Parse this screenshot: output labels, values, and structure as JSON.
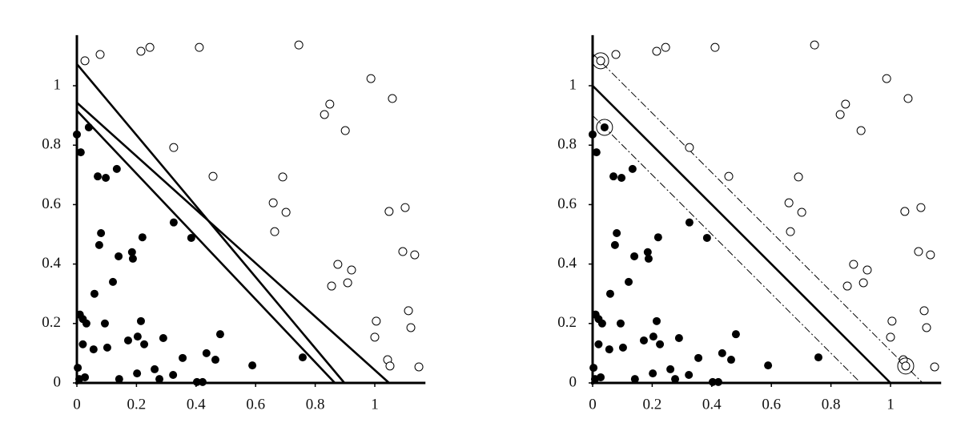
{
  "chart_data": [
    {
      "type": "scatter",
      "xlim": [
        0,
        1.17
      ],
      "ylim": [
        0,
        1.17
      ],
      "xticks": [
        0,
        0.2,
        0.4,
        0.6,
        0.8,
        1
      ],
      "yticks": [
        0,
        0.2,
        0.4,
        0.6,
        0.8,
        1
      ],
      "series": [
        {
          "marker": "filled",
          "color": "#000000",
          "x": [
            0,
            0.013,
            0.04,
            0.07,
            0.097,
            0.134,
            0.081,
            0.075,
            0.185,
            0.188,
            0.22,
            0.14,
            0.325,
            0.384,
            0.121,
            0.059,
            0.01,
            0.02,
            0.032,
            0.094,
            0.02,
            0.056,
            0.102,
            0.172,
            0.204,
            0.215,
            0.226,
            0.29,
            0.355,
            0.435,
            0.465,
            0.481,
            0.589,
            0.758,
            0.003,
            0.008,
            0.027,
            0.142,
            0.202,
            0.261,
            0.277,
            0.323,
            0.403,
            0.422
          ],
          "values": [
            0.836,
            0.776,
            0.86,
            0.695,
            0.69,
            0.72,
            0.504,
            0.464,
            0.44,
            0.418,
            0.49,
            0.426,
            0.54,
            0.488,
            0.34,
            0.3,
            0.23,
            0.215,
            0.2,
            0.2,
            0.13,
            0.113,
            0.119,
            0.143,
            0.156,
            0.208,
            0.13,
            0.151,
            0.084,
            0.1,
            0.078,
            0.164,
            0.059,
            0.086,
            0.051,
            0.013,
            0.019,
            0.013,
            0.032,
            0.046,
            0.013,
            0.027,
            0.003,
            0.003
          ]
        },
        {
          "marker": "open",
          "color": "#000000",
          "x": [
            0.027,
            0.078,
            0.215,
            0.245,
            0.411,
            0.745,
            0.987,
            1.059,
            0.849,
            0.831,
            0.901,
            0.325,
            0.457,
            0.691,
            0.659,
            0.702,
            0.664,
            1.048,
            1.102,
            1.094,
            1.134,
            0.876,
            0.922,
            0.855,
            0.909,
            1.113,
            1.121,
            1.005,
            1.0,
            1.043,
            1.051,
            1.148
          ],
          "values": [
            1.084,
            1.105,
            1.116,
            1.129,
            1.129,
            1.137,
            1.024,
            0.957,
            0.938,
            0.903,
            0.849,
            0.792,
            0.695,
            0.693,
            0.606,
            0.574,
            0.509,
            0.577,
            0.59,
            0.442,
            0.431,
            0.399,
            0.38,
            0.326,
            0.337,
            0.243,
            0.186,
            0.208,
            0.154,
            0.078,
            0.057,
            0.054
          ]
        }
      ],
      "lines": [
        {
          "style": "solid",
          "x": [
            0,
            0.898
          ],
          "values": [
            1.073,
            0
          ]
        },
        {
          "style": "solid",
          "x": [
            0,
            1.048
          ],
          "values": [
            0.943,
            0
          ]
        },
        {
          "style": "solid",
          "x": [
            0,
            0.866
          ],
          "values": [
            0.916,
            0
          ]
        }
      ]
    },
    {
      "type": "scatter",
      "xlim": [
        0,
        1.17
      ],
      "ylim": [
        0,
        1.17
      ],
      "xticks": [
        0,
        0.2,
        0.4,
        0.6,
        0.8,
        1
      ],
      "yticks": [
        0,
        0.2,
        0.4,
        0.6,
        0.8,
        1
      ],
      "series": [
        {
          "marker": "filled",
          "color": "#000000",
          "x": [
            0,
            0.013,
            0.04,
            0.07,
            0.097,
            0.134,
            0.081,
            0.075,
            0.185,
            0.188,
            0.22,
            0.14,
            0.325,
            0.384,
            0.121,
            0.059,
            0.01,
            0.02,
            0.032,
            0.094,
            0.02,
            0.056,
            0.102,
            0.172,
            0.204,
            0.215,
            0.226,
            0.29,
            0.355,
            0.435,
            0.465,
            0.481,
            0.589,
            0.758,
            0.003,
            0.008,
            0.027,
            0.142,
            0.202,
            0.261,
            0.277,
            0.323,
            0.403,
            0.422
          ],
          "values": [
            0.836,
            0.776,
            0.86,
            0.695,
            0.69,
            0.72,
            0.504,
            0.464,
            0.44,
            0.418,
            0.49,
            0.426,
            0.54,
            0.488,
            0.34,
            0.3,
            0.23,
            0.215,
            0.2,
            0.2,
            0.13,
            0.113,
            0.119,
            0.143,
            0.156,
            0.208,
            0.13,
            0.151,
            0.084,
            0.1,
            0.078,
            0.164,
            0.059,
            0.086,
            0.051,
            0.013,
            0.019,
            0.013,
            0.032,
            0.046,
            0.013,
            0.027,
            0.003,
            0.003
          ]
        },
        {
          "marker": "open",
          "color": "#000000",
          "x": [
            0.027,
            0.078,
            0.215,
            0.245,
            0.411,
            0.745,
            0.987,
            1.059,
            0.849,
            0.831,
            0.901,
            0.325,
            0.457,
            0.691,
            0.659,
            0.702,
            0.664,
            1.048,
            1.102,
            1.094,
            1.134,
            0.876,
            0.922,
            0.855,
            0.909,
            1.113,
            1.121,
            1.005,
            1.0,
            1.043,
            1.051,
            1.148
          ],
          "values": [
            1.084,
            1.105,
            1.116,
            1.129,
            1.129,
            1.137,
            1.024,
            0.957,
            0.938,
            0.903,
            0.849,
            0.792,
            0.695,
            0.693,
            0.606,
            0.574,
            0.509,
            0.577,
            0.59,
            0.442,
            0.431,
            0.399,
            0.38,
            0.326,
            0.337,
            0.243,
            0.186,
            0.208,
            0.154,
            0.078,
            0.057,
            0.054
          ]
        },
        {
          "marker": "ring",
          "color": "#000000",
          "x": [
            0.027,
            0.04,
            1.051
          ],
          "values": [
            1.084,
            0.86,
            0.057
          ]
        }
      ],
      "lines": [
        {
          "style": "solid",
          "x": [
            0,
            1.0
          ],
          "values": [
            1.0,
            0
          ]
        },
        {
          "style": "dashdot",
          "x": [
            0,
            1.108
          ],
          "values": [
            1.108,
            0
          ]
        },
        {
          "style": "dashdot",
          "x": [
            0,
            0.9
          ],
          "values": [
            0.9,
            0
          ]
        }
      ]
    }
  ]
}
